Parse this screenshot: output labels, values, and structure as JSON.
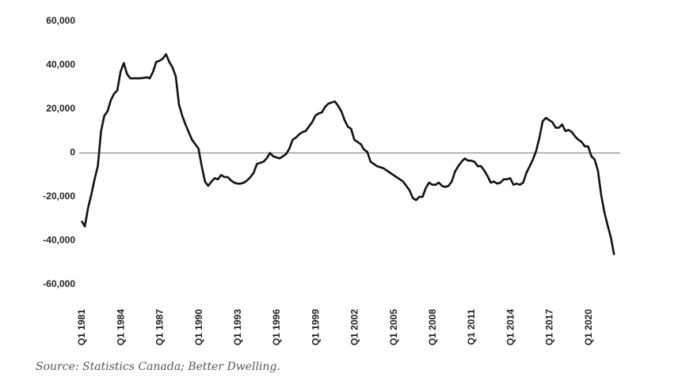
{
  "chart_data": {
    "type": "line",
    "source": "Source: Statistics Canada; Better Dwelling.",
    "categories": [
      "Q1 1981",
      null,
      null,
      null,
      null,
      null,
      null,
      null,
      null,
      null,
      null,
      null,
      "Q1 1984",
      null,
      null,
      null,
      null,
      null,
      null,
      null,
      null,
      null,
      null,
      null,
      "Q1 1987",
      null,
      null,
      null,
      null,
      null,
      null,
      null,
      null,
      null,
      null,
      null,
      "Q1 1990",
      null,
      null,
      null,
      null,
      null,
      null,
      null,
      null,
      null,
      null,
      null,
      "Q1 1993",
      null,
      null,
      null,
      null,
      null,
      null,
      null,
      null,
      null,
      null,
      null,
      "Q1 1996",
      null,
      null,
      null,
      null,
      null,
      null,
      null,
      null,
      null,
      null,
      null,
      "Q1 1999",
      null,
      null,
      null,
      null,
      null,
      null,
      null,
      null,
      null,
      null,
      null,
      "Q1 2002",
      null,
      null,
      null,
      null,
      null,
      null,
      null,
      null,
      null,
      null,
      null,
      "Q1 2005",
      null,
      null,
      null,
      null,
      null,
      null,
      null,
      null,
      null,
      null,
      null,
      "Q1 2008",
      null,
      null,
      null,
      null,
      null,
      null,
      null,
      null,
      null,
      null,
      null,
      "Q1 2011",
      null,
      null,
      null,
      null,
      null,
      null,
      null,
      null,
      null,
      null,
      null,
      "Q1 2014",
      null,
      null,
      null,
      null,
      null,
      null,
      null,
      null,
      null,
      null,
      null,
      "Q1 2017",
      null,
      null,
      null,
      null,
      null,
      null,
      null,
      null,
      null,
      null,
      null,
      "Q1 2020",
      null,
      null,
      null,
      null,
      null,
      null,
      null,
      null
    ],
    "values": [
      -31000,
      -33500,
      -25000,
      -19000,
      -12000,
      -6000,
      10000,
      17000,
      19000,
      24000,
      27000,
      28500,
      37000,
      41000,
      36000,
      34000,
      34000,
      34000,
      34000,
      34200,
      34500,
      34000,
      37000,
      41500,
      42000,
      43000,
      45000,
      41500,
      39000,
      35000,
      22000,
      17000,
      13000,
      9500,
      6000,
      4000,
      2000,
      -6000,
      -13000,
      -15000,
      -13000,
      -11500,
      -12000,
      -10000,
      -11000,
      -11000,
      -12500,
      -13500,
      -14000,
      -14000,
      -13500,
      -12500,
      -11000,
      -9000,
      -5000,
      -4500,
      -4000,
      -2500,
      0,
      -1500,
      -2000,
      -2500,
      -1500,
      -500,
      2000,
      6000,
      7000,
      8500,
      9500,
      10000,
      12000,
      14000,
      17000,
      18000,
      18500,
      21000,
      22500,
      23000,
      23500,
      21500,
      19000,
      15000,
      12000,
      11000,
      6000,
      5000,
      4000,
      1500,
      500,
      -4000,
      -5000,
      -6000,
      -6500,
      -7000,
      -8000,
      -9000,
      -10000,
      -11000,
      -12000,
      -13000,
      -15000,
      -17000,
      -20500,
      -21500,
      -20000,
      -20000,
      -16000,
      -13500,
      -14500,
      -14500,
      -13500,
      -15000,
      -15500,
      -15000,
      -13000,
      -8500,
      -6000,
      -4000,
      -2500,
      -3500,
      -3500,
      -4000,
      -6000,
      -6000,
      -8000,
      -10500,
      -13500,
      -13000,
      -14000,
      -13500,
      -12000,
      -12000,
      -11500,
      -14500,
      -14000,
      -14500,
      -13500,
      -9000,
      -6000,
      -3000,
      1000,
      7000,
      14500,
      16000,
      15000,
      14000,
      11500,
      11500,
      13000,
      10000,
      10500,
      9500,
      7500,
      6000,
      5000,
      3000,
      3000,
      -1500,
      -3000,
      -8000,
      -19000,
      -27000,
      -33000,
      -38500,
      -46500
    ],
    "color": "#111111",
    "ylim": [
      -60000,
      60000
    ],
    "yticks": [
      {
        "value": -60000,
        "label": "-60,000"
      },
      {
        "value": -40000,
        "label": "-40,000"
      },
      {
        "value": -20000,
        "label": "-20,000"
      },
      0,
      {
        "value": 20000,
        "label": "20,000"
      },
      {
        "value": 40000,
        "label": "40,000"
      },
      {
        "value": 60000,
        "label": "60,000"
      }
    ],
    "zero_line": true
  }
}
